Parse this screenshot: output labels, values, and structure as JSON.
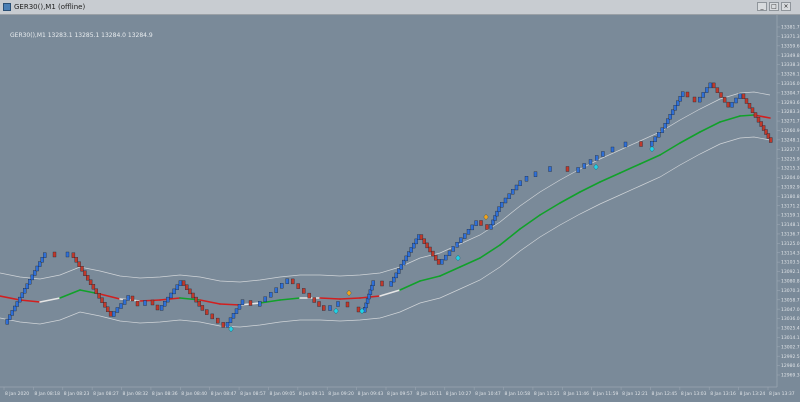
{
  "window": {
    "title": "GER30(),M1 (offline)",
    "buttons": {
      "minimize": "_",
      "maximize": "□",
      "close": "×"
    }
  },
  "chart": {
    "symbol_label": "GER30(),M1  13283.1 13285.1 13284.0 13284.9",
    "colors": {
      "background": "#7a8a99",
      "bull_brick": "#2f6fd6",
      "bear_brick": "#c0392b",
      "brick_edge": "#1a2230",
      "ma_up": "#11a12a",
      "ma_down": "#d21f1f",
      "ma_flat": "#e6e6e6",
      "envelope": "#d0d4d8",
      "signal_cyan": "#21d3e6",
      "signal_orange": "#f0a31c",
      "axis_text": "#dfe3e7"
    },
    "y_axis": {
      "ticks": [
        "13381.7",
        "13371.3",
        "13359.6",
        "13349.8",
        "13338.3",
        "13326.1",
        "13316.0",
        "13304.7",
        "13293.6",
        "13283.3",
        "13271.7",
        "13260.9",
        "13248.1",
        "13237.7",
        "13225.9",
        "13215.3",
        "13204.0",
        "13192.9",
        "13180.8",
        "13171.2",
        "13159.1",
        "13148.1",
        "13136.7",
        "13125.0",
        "13114.3",
        "13103.5",
        "13092.1",
        "13080.8",
        "13070.3",
        "13058.7",
        "13047.0",
        "13036.0",
        "13025.4",
        "13014.1",
        "13002.7",
        "12992.5",
        "12980.6",
        "12969.3"
      ]
    },
    "x_axis": {
      "ticks": [
        "8 Jan 2020",
        "8 Jan 08:18",
        "8 Jan 08:23",
        "8 Jan 08:27",
        "8 Jan 08:32",
        "8 Jan 08:36",
        "8 Jan 08:40",
        "8 Jan 08:47",
        "8 Jan 08:57",
        "8 Jan 09:05",
        "8 Jan 09:11",
        "8 Jan 09:20",
        "8 Jan 09:43",
        "8 Jan 09:57",
        "8 Jan 10:11",
        "8 Jan 10:27",
        "8 Jan 10:47",
        "8 Jan 10:58",
        "8 Jan 11:21",
        "8 Jan 11:46",
        "8 Jan 11:59",
        "8 Jan 12:21",
        "8 Jan 12:45",
        "8 Jan 13:03",
        "8 Jan 13:16",
        "8 Jan 13:24",
        "8 Jan 13:37"
      ]
    }
  }
}
